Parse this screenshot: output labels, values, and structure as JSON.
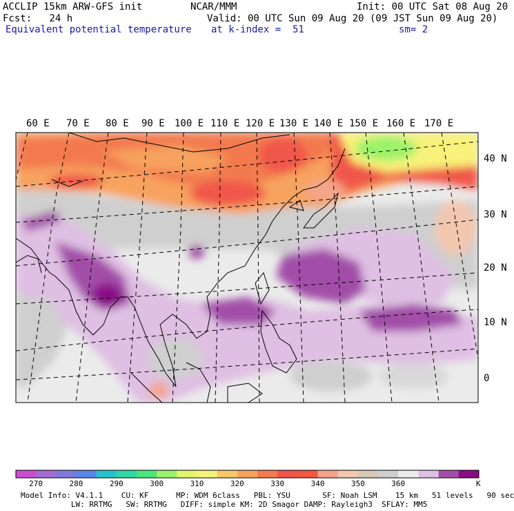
{
  "header": {
    "line1_left": "ACCLIP 15km ARW-GFS init",
    "line1_center": "NCAR/MMM",
    "line1_right": "Init: 00 UTC Sat 08 Aug 20",
    "line2_left": "Fcst:   24 h",
    "line2_right": "Valid: 00 UTC Sun 09 Aug 20 (09 JST Sun 09 Aug 20)",
    "line3_left": "Equivalent potential temperature",
    "line3_center": "at k-index =  51",
    "line3_right": "sm= 2"
  },
  "map": {
    "lon_labels": [
      "60 E",
      "70 E",
      "80 E",
      "90 E",
      "100 E",
      "110 E",
      "120 E",
      "130 E",
      "140 E",
      "150 E",
      "160 E",
      "170 E"
    ],
    "lat_labels": [
      "40 N",
      "30 N",
      "20 N",
      "10 N",
      "0"
    ]
  },
  "colorbar": {
    "unit": "K",
    "colors": [
      "#c94fcf",
      "#a46bd4",
      "#7f79dc",
      "#5a86e6",
      "#27c3cc",
      "#2fd8a6",
      "#4de67e",
      "#9cf26a",
      "#e1f66e",
      "#f8f27a",
      "#f8c76a",
      "#f7a35e",
      "#f37a50",
      "#f0574a",
      "#f2573f",
      "#f4a48a",
      "#f3c7b0",
      "#d8c8b8",
      "#cfcfcf",
      "#ececec",
      "#dfbfe3",
      "#a24ea8",
      "#8a0d88"
    ],
    "tick_labels": [
      "270",
      "280",
      "290",
      "300",
      "310",
      "320",
      "330",
      "340",
      "350",
      "360"
    ]
  },
  "footer": {
    "line1": "Model Info: V4.1.1    CU: KF      MP: WDM 6class   PBL: YSU       SF: Noah LSM    15 km   51 levels   90 sec",
    "line2": "           LW: RRTMG   SW: RRTMG   DIFF: simple KM: 2D Smagor DAMP: Rayleigh3  SFLAY: MM5"
  }
}
